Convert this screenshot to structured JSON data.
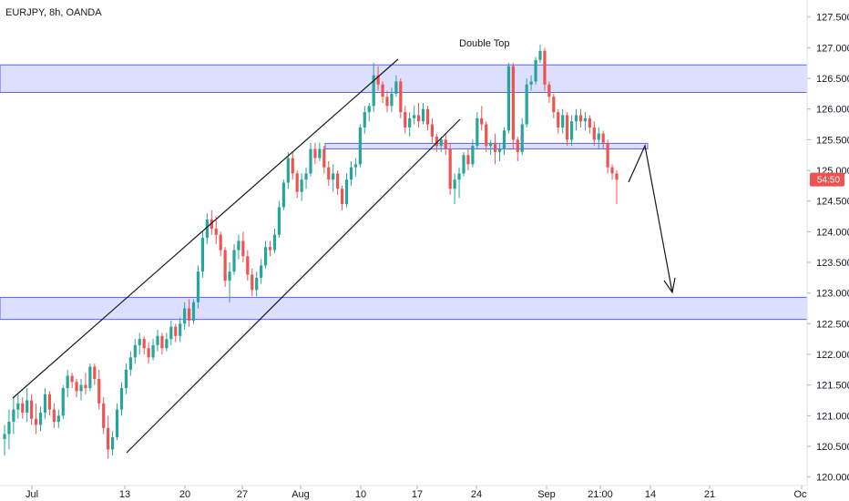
{
  "header": {
    "symbol": "EURJPY, 8h, OANDA"
  },
  "price_badge": {
    "label": "54:50",
    "value": 124.85,
    "color": "#ef5350"
  },
  "colors": {
    "up": "#26a69a",
    "down": "#ef5350",
    "zone_fill": "#d1d4ff",
    "zone_stroke": "#5c63ff",
    "drawing": "#131722",
    "axis_border": "#e0e3eb"
  },
  "chart_data": {
    "type": "candlestick",
    "title": "",
    "xlabel": "",
    "ylabel": "",
    "ylim": [
      119.995,
      127.6
    ],
    "yticks": [
      "127.500",
      "127.000",
      "126.500",
      "126.000",
      "125.500",
      "125.000",
      "124.500",
      "124.000",
      "123.500",
      "123.000",
      "122.500",
      "122.000",
      "121.500",
      "121.000",
      "120.500",
      "120.000"
    ],
    "xticks": [
      "Jul",
      "13",
      "20",
      "27",
      "Aug",
      "10",
      "17",
      "24",
      "Sep",
      "21:00",
      "14",
      "21",
      "Oct"
    ],
    "candles": [
      {
        "o": 120.62,
        "h": 120.85,
        "l": 120.35,
        "c": 120.7
      },
      {
        "o": 120.7,
        "h": 121.1,
        "l": 120.45,
        "c": 120.9
      },
      {
        "o": 120.9,
        "h": 121.3,
        "l": 120.7,
        "c": 121.1
      },
      {
        "o": 121.1,
        "h": 121.35,
        "l": 120.95,
        "c": 121.2
      },
      {
        "o": 121.2,
        "h": 121.3,
        "l": 120.95,
        "c": 121.05
      },
      {
        "o": 121.05,
        "h": 121.45,
        "l": 120.9,
        "c": 121.25
      },
      {
        "o": 121.25,
        "h": 121.35,
        "l": 120.85,
        "c": 120.95
      },
      {
        "o": 120.95,
        "h": 121.2,
        "l": 120.7,
        "c": 120.85
      },
      {
        "o": 120.85,
        "h": 121.15,
        "l": 120.75,
        "c": 121.05
      },
      {
        "o": 121.05,
        "h": 121.45,
        "l": 120.95,
        "c": 121.35
      },
      {
        "o": 121.35,
        "h": 121.4,
        "l": 121.0,
        "c": 121.1
      },
      {
        "o": 121.1,
        "h": 121.2,
        "l": 120.8,
        "c": 120.9
      },
      {
        "o": 120.9,
        "h": 121.1,
        "l": 120.8,
        "c": 121.0
      },
      {
        "o": 121.0,
        "h": 121.5,
        "l": 120.95,
        "c": 121.45
      },
      {
        "o": 121.45,
        "h": 121.75,
        "l": 121.3,
        "c": 121.65
      },
      {
        "o": 121.65,
        "h": 121.7,
        "l": 121.45,
        "c": 121.55
      },
      {
        "o": 121.55,
        "h": 121.6,
        "l": 121.3,
        "c": 121.4
      },
      {
        "o": 121.4,
        "h": 121.6,
        "l": 121.25,
        "c": 121.5
      },
      {
        "o": 121.5,
        "h": 121.7,
        "l": 121.35,
        "c": 121.45
      },
      {
        "o": 121.45,
        "h": 121.85,
        "l": 121.4,
        "c": 121.8
      },
      {
        "o": 121.8,
        "h": 121.85,
        "l": 121.5,
        "c": 121.6
      },
      {
        "o": 121.6,
        "h": 121.75,
        "l": 121.1,
        "c": 121.2
      },
      {
        "o": 121.2,
        "h": 121.3,
        "l": 120.7,
        "c": 120.8
      },
      {
        "o": 120.8,
        "h": 121.0,
        "l": 120.3,
        "c": 120.45
      },
      {
        "o": 120.45,
        "h": 120.75,
        "l": 120.35,
        "c": 120.65
      },
      {
        "o": 120.65,
        "h": 121.2,
        "l": 120.6,
        "c": 121.1
      },
      {
        "o": 121.1,
        "h": 121.55,
        "l": 121.0,
        "c": 121.45
      },
      {
        "o": 121.45,
        "h": 121.85,
        "l": 121.35,
        "c": 121.75
      },
      {
        "o": 121.75,
        "h": 122.05,
        "l": 121.65,
        "c": 121.95
      },
      {
        "o": 121.95,
        "h": 122.25,
        "l": 121.85,
        "c": 122.15
      },
      {
        "o": 122.15,
        "h": 122.35,
        "l": 122.0,
        "c": 122.25
      },
      {
        "o": 122.25,
        "h": 122.3,
        "l": 122.0,
        "c": 122.1
      },
      {
        "o": 122.1,
        "h": 122.2,
        "l": 121.85,
        "c": 121.95
      },
      {
        "o": 121.95,
        "h": 122.25,
        "l": 121.9,
        "c": 122.15
      },
      {
        "o": 122.15,
        "h": 122.4,
        "l": 122.05,
        "c": 122.3
      },
      {
        "o": 122.3,
        "h": 122.35,
        "l": 122.0,
        "c": 122.1
      },
      {
        "o": 122.1,
        "h": 122.35,
        "l": 122.05,
        "c": 122.25
      },
      {
        "o": 122.25,
        "h": 122.55,
        "l": 122.15,
        "c": 122.45
      },
      {
        "o": 122.45,
        "h": 122.5,
        "l": 122.2,
        "c": 122.3
      },
      {
        "o": 122.3,
        "h": 122.6,
        "l": 122.2,
        "c": 122.5
      },
      {
        "o": 122.5,
        "h": 122.85,
        "l": 122.4,
        "c": 122.75
      },
      {
        "o": 122.75,
        "h": 122.9,
        "l": 122.45,
        "c": 122.55
      },
      {
        "o": 122.55,
        "h": 122.9,
        "l": 122.5,
        "c": 122.85
      },
      {
        "o": 122.85,
        "h": 123.45,
        "l": 122.75,
        "c": 123.35
      },
      {
        "o": 123.35,
        "h": 124.0,
        "l": 123.25,
        "c": 123.9
      },
      {
        "o": 123.9,
        "h": 124.3,
        "l": 123.8,
        "c": 124.2
      },
      {
        "o": 124.2,
        "h": 124.35,
        "l": 123.95,
        "c": 124.05
      },
      {
        "o": 124.05,
        "h": 124.25,
        "l": 123.8,
        "c": 123.95
      },
      {
        "o": 123.95,
        "h": 124.0,
        "l": 123.6,
        "c": 123.7
      },
      {
        "o": 123.7,
        "h": 123.75,
        "l": 123.1,
        "c": 123.2
      },
      {
        "o": 123.2,
        "h": 123.5,
        "l": 122.85,
        "c": 123.35
      },
      {
        "o": 123.35,
        "h": 123.8,
        "l": 123.3,
        "c": 123.7
      },
      {
        "o": 123.7,
        "h": 123.95,
        "l": 123.55,
        "c": 123.85
      },
      {
        "o": 123.85,
        "h": 124.0,
        "l": 123.5,
        "c": 123.6
      },
      {
        "o": 123.6,
        "h": 123.7,
        "l": 123.2,
        "c": 123.3
      },
      {
        "o": 123.3,
        "h": 123.4,
        "l": 122.95,
        "c": 123.05
      },
      {
        "o": 123.05,
        "h": 123.35,
        "l": 122.95,
        "c": 123.25
      },
      {
        "o": 123.25,
        "h": 123.55,
        "l": 123.15,
        "c": 123.45
      },
      {
        "o": 123.45,
        "h": 123.85,
        "l": 123.4,
        "c": 123.75
      },
      {
        "o": 123.75,
        "h": 123.85,
        "l": 123.6,
        "c": 123.7
      },
      {
        "o": 123.7,
        "h": 124.05,
        "l": 123.65,
        "c": 123.95
      },
      {
        "o": 123.95,
        "h": 124.5,
        "l": 123.9,
        "c": 124.4
      },
      {
        "o": 124.4,
        "h": 124.85,
        "l": 124.35,
        "c": 124.8
      },
      {
        "o": 124.8,
        "h": 125.3,
        "l": 124.7,
        "c": 125.2
      },
      {
        "o": 125.2,
        "h": 125.3,
        "l": 124.85,
        "c": 124.95
      },
      {
        "o": 124.95,
        "h": 125.0,
        "l": 124.55,
        "c": 124.65
      },
      {
        "o": 124.65,
        "h": 124.95,
        "l": 124.5,
        "c": 124.85
      },
      {
        "o": 124.85,
        "h": 125.05,
        "l": 124.7,
        "c": 124.95
      },
      {
        "o": 124.95,
        "h": 125.45,
        "l": 124.9,
        "c": 125.35
      },
      {
        "o": 125.35,
        "h": 125.45,
        "l": 125.1,
        "c": 125.2
      },
      {
        "o": 125.2,
        "h": 125.45,
        "l": 125.15,
        "c": 125.35
      },
      {
        "o": 125.35,
        "h": 125.4,
        "l": 124.95,
        "c": 125.05
      },
      {
        "o": 125.05,
        "h": 125.15,
        "l": 124.75,
        "c": 124.85
      },
      {
        "o": 124.85,
        "h": 125.1,
        "l": 124.65,
        "c": 124.95
      },
      {
        "o": 124.95,
        "h": 125.0,
        "l": 124.6,
        "c": 124.7
      },
      {
        "o": 124.7,
        "h": 124.75,
        "l": 124.35,
        "c": 124.45
      },
      {
        "o": 124.45,
        "h": 124.95,
        "l": 124.4,
        "c": 124.85
      },
      {
        "o": 124.85,
        "h": 125.15,
        "l": 124.75,
        "c": 125.05
      },
      {
        "o": 125.05,
        "h": 125.2,
        "l": 124.9,
        "c": 125.1
      },
      {
        "o": 125.1,
        "h": 125.75,
        "l": 125.05,
        "c": 125.7
      },
      {
        "o": 125.7,
        "h": 126.05,
        "l": 125.6,
        "c": 125.95
      },
      {
        "o": 125.95,
        "h": 126.1,
        "l": 125.8,
        "c": 126.05
      },
      {
        "o": 126.05,
        "h": 126.75,
        "l": 125.95,
        "c": 126.55
      },
      {
        "o": 126.55,
        "h": 126.7,
        "l": 126.3,
        "c": 126.4
      },
      {
        "o": 126.4,
        "h": 126.45,
        "l": 126.1,
        "c": 126.2
      },
      {
        "o": 126.2,
        "h": 126.3,
        "l": 125.95,
        "c": 126.05
      },
      {
        "o": 126.05,
        "h": 126.35,
        "l": 125.95,
        "c": 126.25
      },
      {
        "o": 126.25,
        "h": 126.55,
        "l": 126.2,
        "c": 126.45
      },
      {
        "o": 126.45,
        "h": 126.5,
        "l": 125.85,
        "c": 125.95
      },
      {
        "o": 125.95,
        "h": 126.05,
        "l": 125.6,
        "c": 125.7
      },
      {
        "o": 125.7,
        "h": 125.95,
        "l": 125.55,
        "c": 125.85
      },
      {
        "o": 125.85,
        "h": 126.05,
        "l": 125.75,
        "c": 125.9
      },
      {
        "o": 125.9,
        "h": 126.1,
        "l": 125.7,
        "c": 125.8
      },
      {
        "o": 125.8,
        "h": 126.1,
        "l": 125.75,
        "c": 126.0
      },
      {
        "o": 126.0,
        "h": 126.05,
        "l": 125.65,
        "c": 125.75
      },
      {
        "o": 125.75,
        "h": 125.85,
        "l": 125.45,
        "c": 125.55
      },
      {
        "o": 125.55,
        "h": 125.6,
        "l": 125.3,
        "c": 125.4
      },
      {
        "o": 125.4,
        "h": 125.55,
        "l": 125.3,
        "c": 125.5
      },
      {
        "o": 125.5,
        "h": 125.6,
        "l": 125.25,
        "c": 125.35
      },
      {
        "o": 125.35,
        "h": 125.45,
        "l": 124.6,
        "c": 124.7
      },
      {
        "o": 124.7,
        "h": 124.95,
        "l": 124.45,
        "c": 124.85
      },
      {
        "o": 124.85,
        "h": 125.05,
        "l": 124.55,
        "c": 124.95
      },
      {
        "o": 124.95,
        "h": 125.3,
        "l": 124.9,
        "c": 125.25
      },
      {
        "o": 125.25,
        "h": 125.35,
        "l": 125.0,
        "c": 125.1
      },
      {
        "o": 125.1,
        "h": 125.5,
        "l": 125.05,
        "c": 125.4
      },
      {
        "o": 125.4,
        "h": 125.95,
        "l": 125.35,
        "c": 125.85
      },
      {
        "o": 125.85,
        "h": 126.05,
        "l": 125.65,
        "c": 125.75
      },
      {
        "o": 125.75,
        "h": 125.8,
        "l": 125.3,
        "c": 125.4
      },
      {
        "o": 125.4,
        "h": 125.5,
        "l": 125.25,
        "c": 125.45
      },
      {
        "o": 125.45,
        "h": 125.6,
        "l": 125.1,
        "c": 125.3
      },
      {
        "o": 125.3,
        "h": 125.45,
        "l": 125.15,
        "c": 125.35
      },
      {
        "o": 125.35,
        "h": 125.7,
        "l": 125.25,
        "c": 125.65
      },
      {
        "o": 125.65,
        "h": 126.75,
        "l": 125.6,
        "c": 126.7
      },
      {
        "o": 126.7,
        "h": 126.75,
        "l": 125.35,
        "c": 125.5
      },
      {
        "o": 125.5,
        "h": 125.55,
        "l": 125.15,
        "c": 125.3
      },
      {
        "o": 125.3,
        "h": 125.85,
        "l": 125.25,
        "c": 125.75
      },
      {
        "o": 125.75,
        "h": 126.5,
        "l": 125.7,
        "c": 126.4
      },
      {
        "o": 126.4,
        "h": 126.55,
        "l": 126.3,
        "c": 126.45
      },
      {
        "o": 126.45,
        "h": 126.85,
        "l": 126.4,
        "c": 126.8
      },
      {
        "o": 126.8,
        "h": 127.05,
        "l": 126.75,
        "c": 126.95
      },
      {
        "o": 126.95,
        "h": 127.0,
        "l": 126.3,
        "c": 126.4
      },
      {
        "o": 126.4,
        "h": 126.45,
        "l": 126.1,
        "c": 126.2
      },
      {
        "o": 126.2,
        "h": 126.25,
        "l": 125.85,
        "c": 125.95
      },
      {
        "o": 125.95,
        "h": 126.0,
        "l": 125.6,
        "c": 125.7
      },
      {
        "o": 125.7,
        "h": 126.0,
        "l": 125.6,
        "c": 125.9
      },
      {
        "o": 125.9,
        "h": 125.95,
        "l": 125.4,
        "c": 125.5
      },
      {
        "o": 125.5,
        "h": 125.9,
        "l": 125.4,
        "c": 125.8
      },
      {
        "o": 125.8,
        "h": 126.0,
        "l": 125.65,
        "c": 125.9
      },
      {
        "o": 125.9,
        "h": 126.0,
        "l": 125.7,
        "c": 125.8
      },
      {
        "o": 125.8,
        "h": 125.95,
        "l": 125.65,
        "c": 125.85
      },
      {
        "o": 125.85,
        "h": 125.9,
        "l": 125.6,
        "c": 125.7
      },
      {
        "o": 125.7,
        "h": 125.8,
        "l": 125.4,
        "c": 125.5
      },
      {
        "o": 125.5,
        "h": 125.7,
        "l": 125.35,
        "c": 125.6
      },
      {
        "o": 125.6,
        "h": 125.65,
        "l": 125.35,
        "c": 125.45
      },
      {
        "o": 125.45,
        "h": 125.5,
        "l": 124.95,
        "c": 125.05
      },
      {
        "o": 125.05,
        "h": 125.1,
        "l": 124.85,
        "c": 124.95
      },
      {
        "o": 124.95,
        "h": 125.0,
        "l": 124.45,
        "c": 124.85
      }
    ],
    "zones": [
      {
        "from": 126.27,
        "to": 126.72
      },
      {
        "from": 122.57,
        "to": 122.93
      },
      {
        "from": 125.35,
        "to": 125.44
      }
    ],
    "annotations": [
      {
        "text": "Double Top"
      }
    ]
  }
}
